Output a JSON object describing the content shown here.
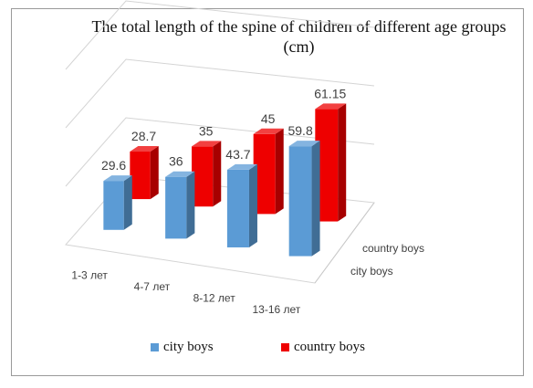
{
  "chart_data": {
    "type": "bar",
    "variant": "3d-column",
    "title": "The total length of the spine of children of different age groups (cm)",
    "categories": [
      "1-3 лет",
      "4-7 лет",
      "8-12 лет",
      "13-16 лет"
    ],
    "series": [
      {
        "name": "city boys",
        "values": [
          29.6,
          36,
          43.7,
          59.8
        ],
        "labels": [
          "29.6",
          "36",
          "43.7",
          "59.8"
        ],
        "color": "#5b9bd5"
      },
      {
        "name": "country boys",
        "values": [
          28.7,
          35,
          45,
          61.15
        ],
        "labels": [
          "28.7",
          "35",
          "45",
          "61.15"
        ],
        "color": "#ee0000"
      }
    ],
    "depth_axis_labels": [
      "country boys",
      "city boys"
    ],
    "grid": true,
    "legend_position": "bottom"
  }
}
